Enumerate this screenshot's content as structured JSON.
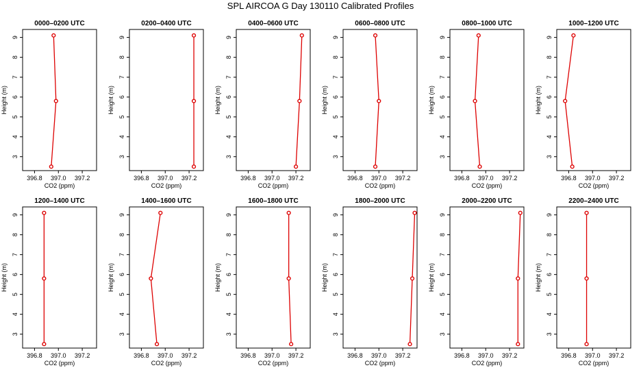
{
  "main_title": "SPL AIRCOA G  Day 130110  Calibrated Profiles",
  "colors": {
    "series": "#dd0000",
    "axes": "#000000"
  },
  "chart_data": {
    "type": "line",
    "xlabel": "CO2 (ppm)",
    "ylabel": "Height (m)",
    "xlim": [
      396.7,
      397.32
    ],
    "ylim": [
      2.3,
      9.4
    ],
    "x_ticks": [
      "396.8",
      "397.0",
      "397.2"
    ],
    "x_tick_values": [
      396.8,
      397.0,
      397.2
    ],
    "y_ticks": [
      "3",
      "4",
      "5",
      "6",
      "7",
      "8",
      "9"
    ],
    "y_tick_values": [
      3,
      4,
      5,
      6,
      7,
      8,
      9
    ],
    "heights": [
      2.5,
      5.8,
      9.1
    ],
    "grid": false,
    "panels": [
      {
        "title": "0000–0200 UTC",
        "co2": [
          396.94,
          396.98,
          396.96
        ]
      },
      {
        "title": "0200–0400 UTC",
        "co2": [
          397.24,
          397.24,
          397.24
        ]
      },
      {
        "title": "0400–0600 UTC",
        "co2": [
          397.2,
          397.23,
          397.25
        ]
      },
      {
        "title": "0600–0800 UTC",
        "co2": [
          396.97,
          397.0,
          396.97
        ]
      },
      {
        "title": "0800–1000 UTC",
        "co2": [
          396.95,
          396.91,
          396.94
        ]
      },
      {
        "title": "1000–1200 UTC",
        "co2": [
          396.83,
          396.77,
          396.84
        ]
      },
      {
        "title": "1200–1400 UTC",
        "co2": [
          396.88,
          396.88,
          396.88
        ]
      },
      {
        "title": "1400–1600 UTC",
        "co2": [
          396.93,
          396.88,
          396.96
        ]
      },
      {
        "title": "1600–1800 UTC",
        "co2": [
          397.16,
          397.14,
          397.14
        ]
      },
      {
        "title": "1800–2000 UTC",
        "co2": [
          397.26,
          397.28,
          397.3
        ]
      },
      {
        "title": "2000–2200 UTC",
        "co2": [
          397.27,
          397.27,
          397.29
        ]
      },
      {
        "title": "2200–2400 UTC",
        "co2": [
          396.95,
          396.95,
          396.95
        ]
      }
    ]
  }
}
